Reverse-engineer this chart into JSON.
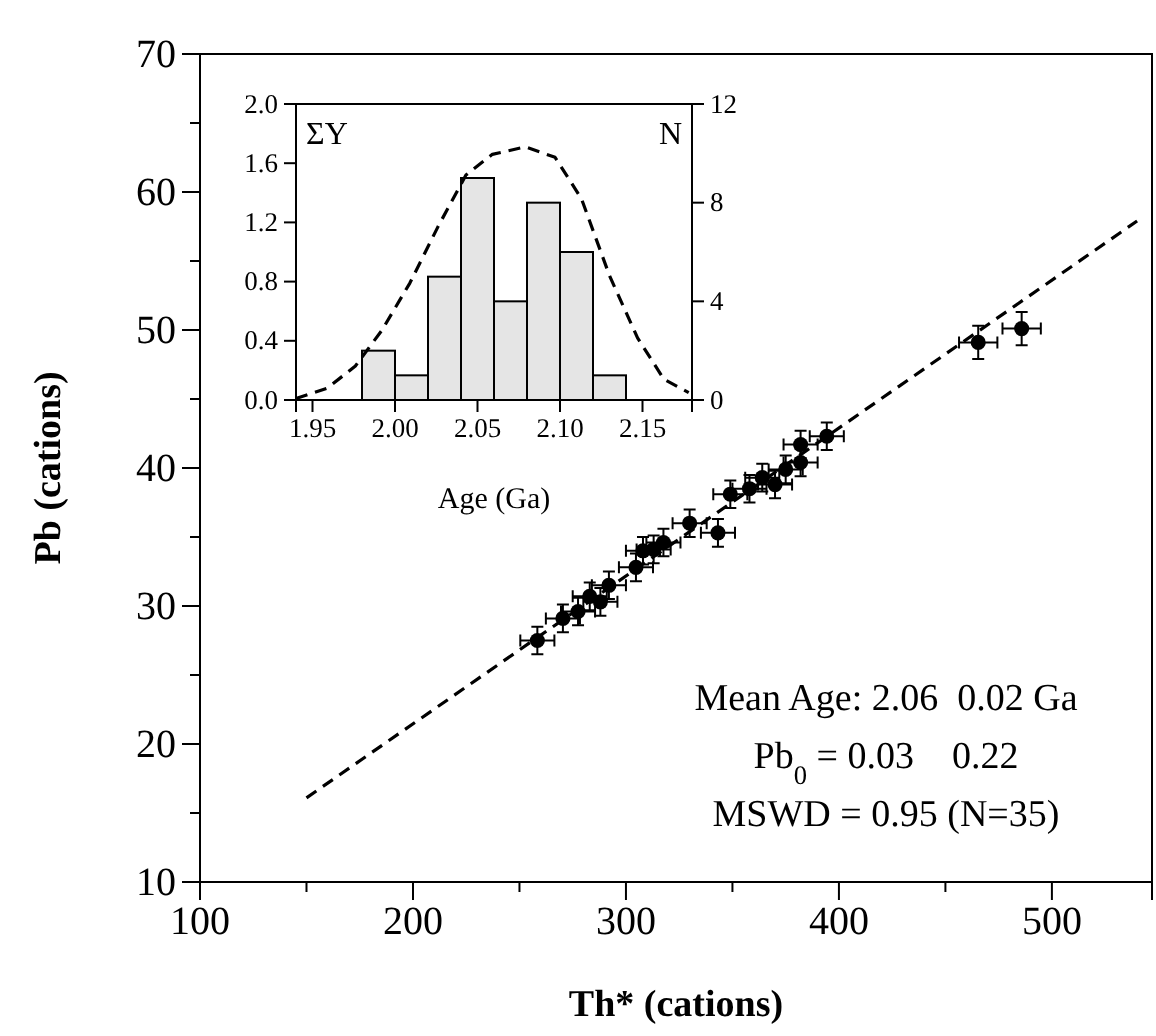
{
  "chart_data": [
    {
      "type": "scatter",
      "xlabel": "Th* (cations)",
      "ylabel": "Pb (cations)",
      "xlim": [
        100,
        547
      ],
      "ylim": [
        10,
        70
      ],
      "xticks": [
        100,
        {
          "value": 150,
          "label": null
        },
        200,
        {
          "value": 250,
          "label": null
        },
        300,
        {
          "value": 350,
          "label": null
        },
        400,
        {
          "value": 450,
          "label": null
        },
        500
      ],
      "yticks": [
        10,
        {
          "value": 15,
          "label": null
        },
        20,
        {
          "value": 25,
          "label": null
        },
        30,
        {
          "value": 35,
          "label": null
        },
        40,
        {
          "value": 45,
          "label": null
        },
        50,
        {
          "value": 55,
          "label": null
        },
        60,
        {
          "value": 65,
          "label": null
        },
        70
      ],
      "grid": false,
      "annotations": [
        "Mean Age: 2.06  0.02 Ga",
        "Pb$_{0}$ = 0.03    0.22",
        "MSWD = 0.95 (N=35)"
      ],
      "series": [
        {
          "color": "#000000",
          "marker": "circle",
          "x": [
            258.4,
            270.4,
            277.5,
            283,
            288,
            292,
            304.7,
            308,
            313,
            317.6,
            329.9,
            343.2,
            349.0,
            358,
            364,
            370,
            375,
            382.0,
            382.0,
            394.3,
            465.4,
            485.8
          ],
          "values": [
            27.5,
            29.1,
            29.6,
            30.7,
            30.3,
            31.5,
            32.8,
            34.0,
            34.1,
            34.6,
            36.0,
            35.3,
            38.1,
            38.5,
            39.3,
            38.8,
            39.9,
            41.7,
            40.4,
            42.3,
            49.1,
            50.1
          ],
          "xerrors": [
            8,
            8,
            8,
            8,
            8,
            8,
            8,
            8,
            8,
            8,
            8,
            8,
            8,
            8,
            8,
            8,
            8,
            8,
            8,
            8,
            9,
            9
          ],
          "errors": [
            1,
            1,
            1,
            1,
            1,
            1,
            1,
            1,
            1,
            1,
            1,
            1,
            1,
            1,
            1,
            1,
            1,
            1,
            1,
            1,
            1.2,
            1.2
          ]
        },
        {
          "type": "line",
          "color": "#000000",
          "line_style": "dashed",
          "x": [
            150,
            540
          ],
          "values": [
            16.1,
            57.9
          ]
        }
      ]
    },
    {
      "type": "histogram",
      "xlabel": "Age (Ga)",
      "ylabel": "ΣY",
      "y2label": "N",
      "xlim": [
        1.94,
        2.18
      ],
      "ylim": [
        0,
        2
      ],
      "y2lim": [
        0,
        12
      ],
      "xticks": [
        {
          "value": 1.95,
          "label": "1.95"
        },
        {
          "value": 2.0,
          "label": "2.00"
        },
        {
          "value": 2.05,
          "label": "2.05"
        },
        {
          "value": 2.1,
          "label": "2.10"
        },
        {
          "value": 2.15,
          "label": "2.15"
        }
      ],
      "yticks": [
        {
          "value": 0,
          "label": "0.0"
        },
        {
          "value": 0.4,
          "label": "0.4"
        },
        {
          "value": 0.8,
          "label": "0.8"
        },
        {
          "value": 1.2,
          "label": "1.2"
        },
        {
          "value": 1.6,
          "label": "1.6"
        },
        {
          "value": 2,
          "label": "2.0"
        }
      ],
      "y2ticks": [
        0,
        4,
        8,
        12
      ],
      "grid": false,
      "bins": [
        1.98,
        2.0,
        2.02,
        2.04,
        2.06,
        2.08,
        2.1,
        2.12,
        2.14
      ],
      "series": [
        {
          "axis": "y2",
          "color": "#e5e5e5",
          "values": [
            2,
            1,
            5,
            9,
            4,
            8,
            6,
            1
          ]
        },
        {
          "type": "line",
          "color": "#000000",
          "line_style": "dashed",
          "x": [
            1.94,
            1.959,
            1.976,
            1.992,
            2.009,
            2.026,
            2.043,
            2.059,
            2.079,
            2.097,
            2.113,
            2.13,
            2.147,
            2.163,
            2.178
          ],
          "values": [
            0.01,
            0.08,
            0.23,
            0.47,
            0.79,
            1.17,
            1.52,
            1.66,
            1.71,
            1.64,
            1.36,
            0.84,
            0.42,
            0.14,
            0.05
          ]
        }
      ]
    }
  ]
}
